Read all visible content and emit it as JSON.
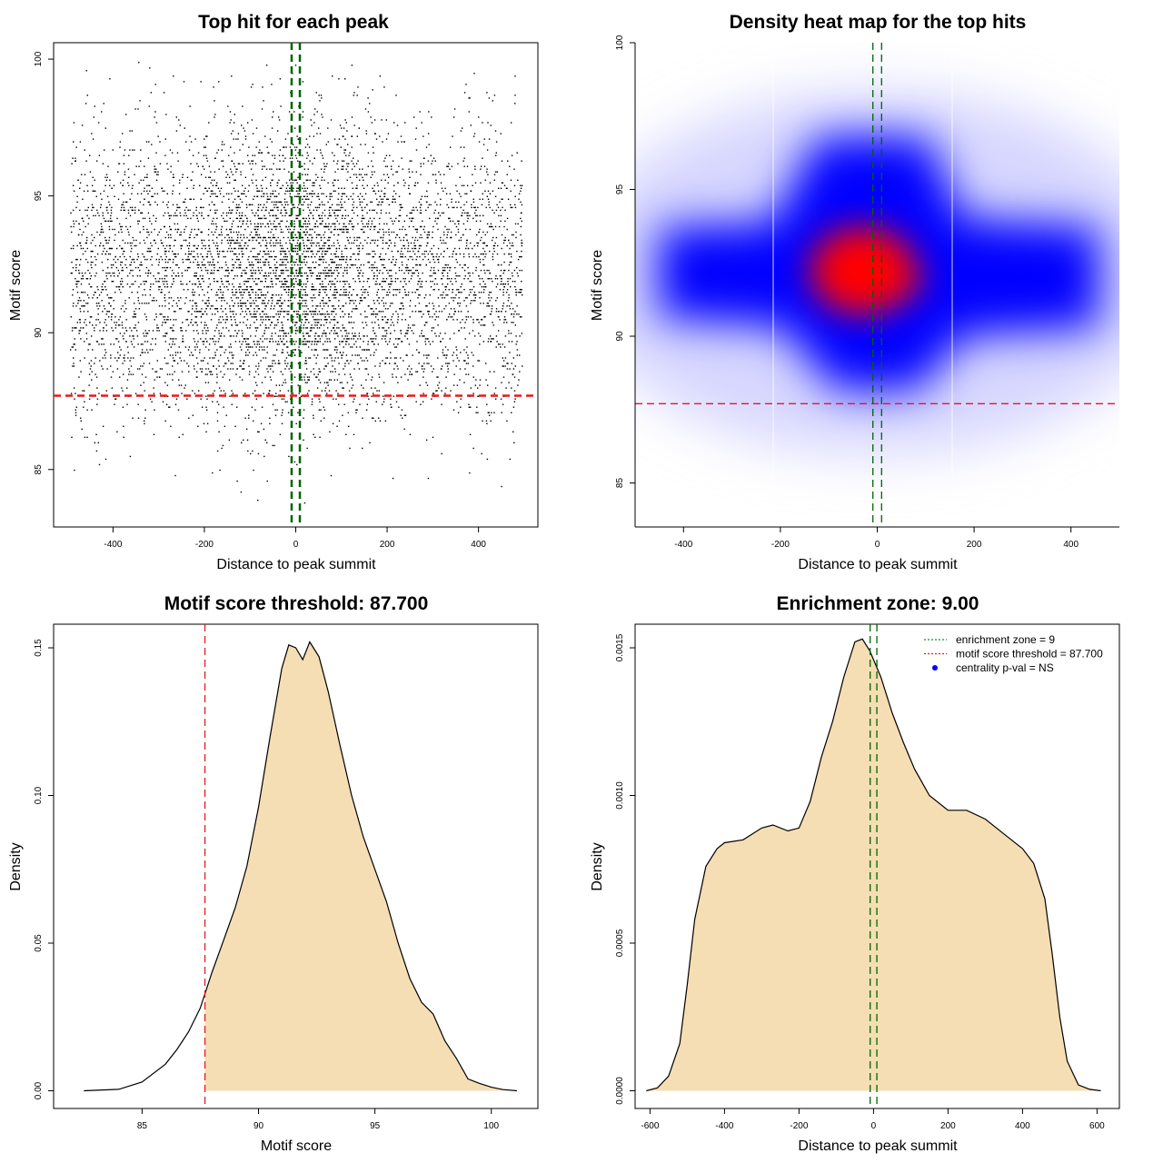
{
  "chart_data": [
    {
      "type": "scatter",
      "title": "Top hit for each peak",
      "xlabel": "Distance to peak summit",
      "ylabel": "Motif score",
      "xlim": [
        -530,
        530
      ],
      "ylim": [
        82.9,
        100.6
      ],
      "xticks": [
        -400,
        -200,
        0,
        200,
        400
      ],
      "yticks": [
        85,
        90,
        95,
        100
      ],
      "points_summary": {
        "n_approx": 6500,
        "x_range": [
          -495,
          495
        ],
        "score_mean": 92.2,
        "score_sd": 2.6,
        "score_min": 83.5,
        "score_max": 100
      },
      "hlines": [
        {
          "y": 87.7,
          "color": "#e41a1c",
          "style": "dashed"
        }
      ],
      "vlines": [
        {
          "x": -9,
          "color": "#006400",
          "style": "dashed"
        },
        {
          "x": 9,
          "color": "#006400",
          "style": "dashed"
        }
      ]
    },
    {
      "type": "heatmap",
      "title": "Density heat map for the top hits",
      "xlabel": "Distance to peak summit",
      "ylabel": "Motif score",
      "xlim": [
        -500,
        500
      ],
      "ylim": [
        83.5,
        100
      ],
      "xticks": [
        -400,
        -200,
        0,
        200,
        400
      ],
      "yticks": [
        85,
        90,
        95,
        100
      ],
      "colors": {
        "low": "#ffffff",
        "mid": "#0000ff",
        "high": "#ff0000"
      },
      "hotspot": {
        "x": -20,
        "y": 92.3
      },
      "band_center_y": 91.8,
      "hlines": [
        {
          "y": 87.7,
          "color": "#e41a1c",
          "style": "dashed"
        }
      ],
      "vlines": [
        {
          "x": -9,
          "color": "#006400",
          "style": "dashed"
        },
        {
          "x": 9,
          "color": "#006400",
          "style": "dashed"
        }
      ]
    },
    {
      "type": "area",
      "title": "Motif score threshold: 87.700",
      "xlabel": "Motif score",
      "ylabel": "Density",
      "xlim": [
        81.2,
        102.0
      ],
      "ylim": [
        -0.006,
        0.158
      ],
      "xticks": [
        85,
        90,
        95,
        100
      ],
      "yticks": [
        0.0,
        0.05,
        0.1,
        0.15
      ],
      "ytick_labels": [
        "0.00",
        "0.05",
        "0.10",
        "0.15"
      ],
      "fill_from": 87.7,
      "fill_color": "#f5deb3",
      "x": [
        82.5,
        84.0,
        85.0,
        86.0,
        86.5,
        87.0,
        87.5,
        88.0,
        88.5,
        89.0,
        89.5,
        90.0,
        90.5,
        91.0,
        91.3,
        91.6,
        91.9,
        92.2,
        92.6,
        93.0,
        93.5,
        94.0,
        94.5,
        95.0,
        95.5,
        96.0,
        96.5,
        97.0,
        97.5,
        98.0,
        98.5,
        99.0,
        99.5,
        100.0,
        100.5,
        101.1
      ],
      "y": [
        0.0,
        0.0005,
        0.003,
        0.009,
        0.014,
        0.02,
        0.028,
        0.04,
        0.051,
        0.062,
        0.076,
        0.096,
        0.12,
        0.143,
        0.151,
        0.15,
        0.146,
        0.152,
        0.147,
        0.135,
        0.117,
        0.1,
        0.086,
        0.075,
        0.064,
        0.05,
        0.038,
        0.03,
        0.026,
        0.017,
        0.011,
        0.004,
        0.0025,
        0.0012,
        0.0004,
        0.0
      ]
    },
    {
      "type": "area",
      "title": "Enrichment zone: 9.00",
      "xlabel": "Distance to peak summit",
      "ylabel": "Density",
      "xlim": [
        -640,
        660
      ],
      "ylim": [
        -6e-05,
        0.00158
      ],
      "xticks": [
        -600,
        -400,
        -200,
        0,
        200,
        400,
        600
      ],
      "yticks": [
        0.0,
        0.0005,
        0.001,
        0.0015
      ],
      "ytick_labels": [
        "0.0000",
        "0.0005",
        "0.0010",
        "0.0015"
      ],
      "fill_color": "#f5deb3",
      "x": [
        -610,
        -580,
        -550,
        -520,
        -500,
        -480,
        -450,
        -420,
        -400,
        -350,
        -300,
        -270,
        -230,
        -200,
        -170,
        -140,
        -110,
        -80,
        -50,
        -30,
        -10,
        0,
        20,
        50,
        80,
        110,
        150,
        200,
        250,
        300,
        350,
        400,
        430,
        460,
        480,
        500,
        520,
        550,
        580,
        610
      ],
      "y": [
        0.0,
        1e-05,
        5e-05,
        0.00016,
        0.00036,
        0.00058,
        0.00076,
        0.00082,
        0.00084,
        0.00085,
        0.00089,
        0.0009,
        0.00088,
        0.00089,
        0.00098,
        0.00113,
        0.00125,
        0.0014,
        0.00152,
        0.00153,
        0.00149,
        0.00146,
        0.0014,
        0.00128,
        0.00118,
        0.00109,
        0.001,
        0.00095,
        0.00095,
        0.00092,
        0.00087,
        0.00082,
        0.00077,
        0.00065,
        0.00046,
        0.00025,
        0.0001,
        2e-05,
        5e-06,
        0.0
      ],
      "vlines": [
        {
          "x": -9,
          "color": "#006400",
          "style": "dashed"
        },
        {
          "x": 9,
          "color": "#006400",
          "style": "dashed"
        }
      ],
      "legend": [
        {
          "label": "enrichment zone = 9",
          "color": "#228b22",
          "kind": "dotted"
        },
        {
          "label": "motif score threshold = 87.700",
          "color": "#e41a1c",
          "kind": "dotted"
        },
        {
          "label": "centrality p-val = NS",
          "color": "#0000ff",
          "kind": "point"
        }
      ],
      "legend_position": "top-right"
    }
  ]
}
